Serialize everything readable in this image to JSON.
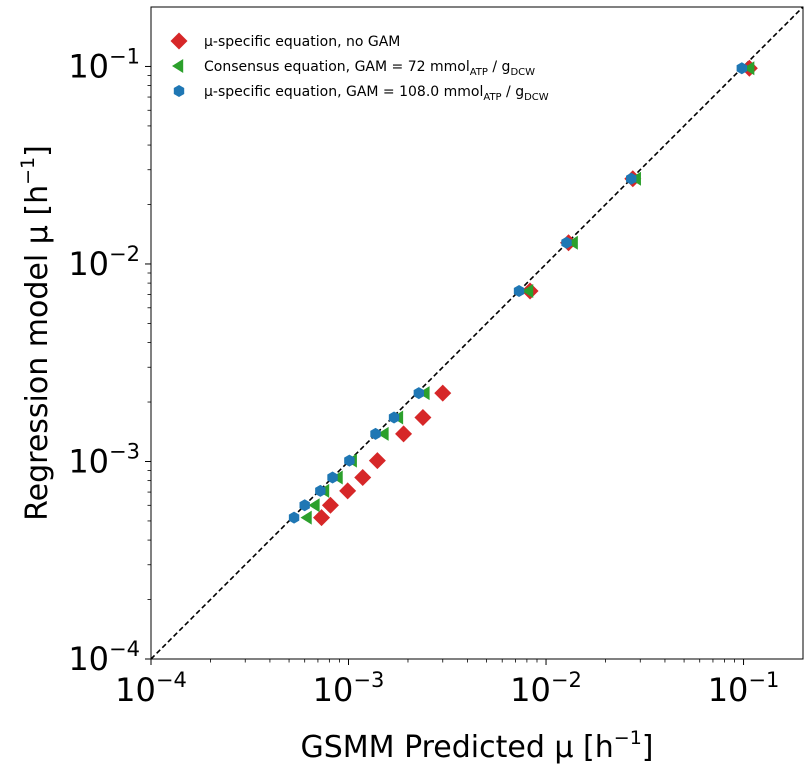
{
  "chart_data": {
    "type": "scatter",
    "xscale": "log",
    "yscale": "log",
    "xlim": [
      0.0001,
      0.2
    ],
    "ylim": [
      0.0001,
      0.2
    ],
    "xlabel": {
      "text": "GSMM Predicted μ [h",
      "sup": "−1",
      "close": "]"
    },
    "ylabel": {
      "text": "Regression model μ [h",
      "sup": "−1",
      "close": "]"
    },
    "xticks": [
      {
        "value": 0.0001,
        "base": "10",
        "exp": "−4"
      },
      {
        "value": 0.001,
        "base": "10",
        "exp": "−3"
      },
      {
        "value": 0.01,
        "base": "10",
        "exp": "−2"
      },
      {
        "value": 0.1,
        "base": "10",
        "exp": "−1"
      }
    ],
    "yticks": [
      {
        "value": 0.0001,
        "base": "10",
        "exp": "−4"
      },
      {
        "value": 0.001,
        "base": "10",
        "exp": "−3"
      },
      {
        "value": 0.01,
        "base": "10",
        "exp": "−2"
      },
      {
        "value": 0.1,
        "base": "10",
        "exp": "−1"
      }
    ],
    "reference_line": {
      "style": "dashed",
      "color": "#000000",
      "from": [
        0.0001,
        0.0001
      ],
      "to": [
        0.2,
        0.2
      ]
    },
    "legend": {
      "placement": "top-left"
    },
    "series": [
      {
        "name": "μ-specific equation, no GAM",
        "name_parts": [
          {
            "t": "μ-specific equation, no GAM",
            "sub": false
          }
        ],
        "marker": "diamond",
        "color": "#d62728",
        "x": [
          0.00073,
          0.00081,
          0.00099,
          0.00118,
          0.0014,
          0.0019,
          0.00238,
          0.003,
          0.0083,
          0.013,
          0.0275,
          0.107
        ],
        "y": [
          0.00052,
          0.0006,
          0.00071,
          0.00083,
          0.00101,
          0.00138,
          0.00167,
          0.00222,
          0.0073,
          0.0128,
          0.027,
          0.098
        ]
      },
      {
        "name": "Consensus equation, GAM = 72 mmolATP / gDCW",
        "name_parts": [
          {
            "t": "Consensus equation, GAM = 72 mmol",
            "sub": false
          },
          {
            "t": "ATP",
            "sub": true
          },
          {
            "t": " / g",
            "sub": false
          },
          {
            "t": "DCW",
            "sub": true
          }
        ],
        "marker": "triangle-left",
        "color": "#2ca02c",
        "x": [
          0.00062,
          0.00068,
          0.00076,
          0.00089,
          0.00105,
          0.00152,
          0.0018,
          0.00245,
          0.0082,
          0.0138,
          0.0288,
          0.108
        ],
        "y": [
          0.00052,
          0.0006,
          0.00071,
          0.00083,
          0.00101,
          0.00138,
          0.00167,
          0.00222,
          0.0073,
          0.0128,
          0.027,
          0.098
        ]
      },
      {
        "name": "μ-specific equation, GAM = 108.0 mmolATP / gDCW",
        "name_parts": [
          {
            "t": "μ-specific equation, GAM = 108.0 mmol",
            "sub": false
          },
          {
            "t": "ATP",
            "sub": true
          },
          {
            "t": " / g",
            "sub": false
          },
          {
            "t": "DCW",
            "sub": true
          }
        ],
        "marker": "hexagon",
        "color": "#1f77b4",
        "x": [
          0.00053,
          0.0006,
          0.00072,
          0.00083,
          0.00101,
          0.00137,
          0.0017,
          0.00227,
          0.0073,
          0.0127,
          0.027,
          0.098
        ],
        "y": [
          0.00052,
          0.0006,
          0.00071,
          0.00083,
          0.00101,
          0.00138,
          0.00167,
          0.00222,
          0.0073,
          0.0128,
          0.027,
          0.098
        ]
      }
    ]
  }
}
